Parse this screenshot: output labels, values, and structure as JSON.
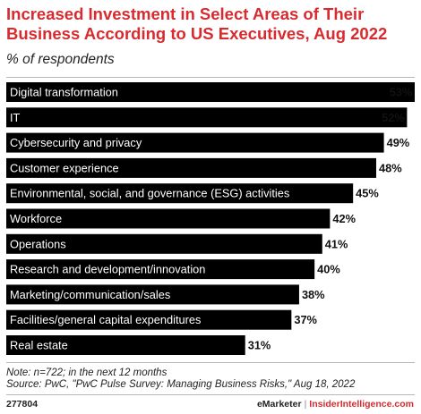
{
  "header": {
    "title": "Increased Investment in Select Areas of Their Business According to US Executives, Aug 2022",
    "subtitle": "% of respondents"
  },
  "chart_data": {
    "type": "bar",
    "orientation": "horizontal",
    "categories": [
      "Digital transformation",
      "IT",
      "Cybersecurity and privacy",
      "Customer experience",
      "Environmental, social, and governance (ESG) activities",
      "Workforce",
      "Operations",
      "Research and development/innovation",
      "Marketing/communication/sales",
      "Facilities/general capital expenditures",
      "Real estate"
    ],
    "values": [
      53,
      52,
      49,
      48,
      45,
      42,
      41,
      40,
      38,
      37,
      31
    ],
    "value_labels": [
      "53%",
      "52%",
      "49%",
      "48%",
      "45%",
      "42%",
      "41%",
      "40%",
      "38%",
      "37%",
      "31%"
    ],
    "xlim": [
      0,
      53
    ],
    "bar_color": "#000000",
    "grid": false
  },
  "footer": {
    "note": "Note: n=722; in the next 12 months",
    "source": "Source: PwC, \"PwC Pulse Survey: Managing Business Risks,\" Aug 18, 2022",
    "chart_id": "277804",
    "brand_emarketer": "eMarketer",
    "brand_separator": "|",
    "brand_insider": "InsiderIntelligence.com"
  },
  "colors": {
    "title": "#d72b2f",
    "bars": "#000000",
    "brand_accent": "#d72b2f"
  }
}
